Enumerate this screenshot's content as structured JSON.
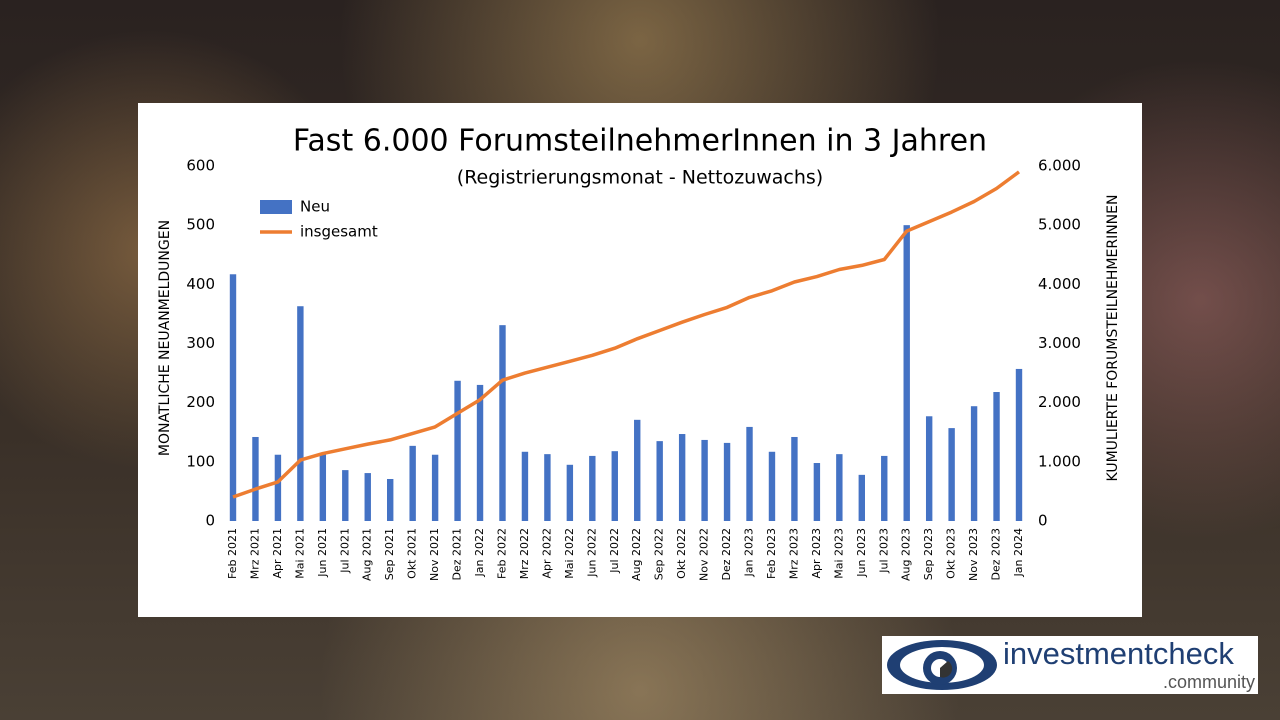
{
  "chart_data": {
    "type": "bar-line",
    "title": "Fast 6.000 ForumsteilnehmerInnen  in 3 Jahren",
    "subtitle": "(Registrierungsmonat  - Nettozuwachs)",
    "ylabel": "MONATLICHE NEUANMELDUNGEN",
    "y2label": "KUMULIERTE FORUMSTEILNEHMERINNEN",
    "categories": [
      "Feb 2021",
      "Mrz 2021",
      "Apr 2021",
      "Mai 2021",
      "Jun 2021",
      "Jul 2021",
      "Aug 2021",
      "Sep 2021",
      "Okt 2021",
      "Nov 2021",
      "Dez 2021",
      "Jan 2022",
      "Feb 2022",
      "Mrz 2022",
      "Apr 2022",
      "Mai 2022",
      "Jun 2022",
      "Jul 2022",
      "Aug 2022",
      "Sep 2022",
      "Okt 2022",
      "Nov 2022",
      "Dez 2022",
      "Jan 2023",
      "Feb 2023",
      "Mrz 2023",
      "Apr 2023",
      "Mai 2023",
      "Jun 2023",
      "Jul 2023",
      "Aug 2023",
      "Sep 2023",
      "Okt 2023",
      "Nov 2023",
      "Dez 2023",
      "Jan 2024"
    ],
    "series": [
      {
        "name": "Neu",
        "type": "bar",
        "color": "#4472c4",
        "values": [
          417,
          142,
          112,
          363,
          115,
          86,
          81,
          71,
          127,
          112,
          237,
          230,
          331,
          117,
          113,
          95,
          110,
          118,
          171,
          135,
          147,
          137,
          132,
          159,
          117,
          142,
          98,
          113,
          78,
          110,
          500,
          177,
          157,
          194,
          218,
          257
        ]
      },
      {
        "name": "insgesamt",
        "type": "line",
        "axis": "y2",
        "color": "#ed7d31",
        "values": [
          405,
          540,
          660,
          1030,
          1140,
          1220,
          1300,
          1370,
          1480,
          1590,
          1820,
          2050,
          2380,
          2500,
          2600,
          2700,
          2800,
          2920,
          3080,
          3220,
          3360,
          3490,
          3610,
          3780,
          3890,
          4040,
          4130,
          4250,
          4320,
          4420,
          4900,
          5060,
          5220,
          5400,
          5620,
          5900
        ]
      }
    ],
    "ylim": [
      0,
      600
    ],
    "yticks": [
      0,
      100,
      200,
      300,
      400,
      500,
      600
    ],
    "y2lim": [
      0,
      6000
    ],
    "y2ticks": [
      0,
      {
        "value": 1000,
        "label": "1.000"
      },
      {
        "value": 2000,
        "label": "2.000"
      },
      {
        "value": 3000,
        "label": "3.000"
      },
      {
        "value": 4000,
        "label": "4.000"
      },
      {
        "value": 5000,
        "label": "5.000"
      },
      {
        "value": 6000,
        "label": "6.000"
      }
    ],
    "legend": "top-left",
    "grid": false
  },
  "logo": {
    "name": "investmentcheck",
    "sub": ".community"
  }
}
